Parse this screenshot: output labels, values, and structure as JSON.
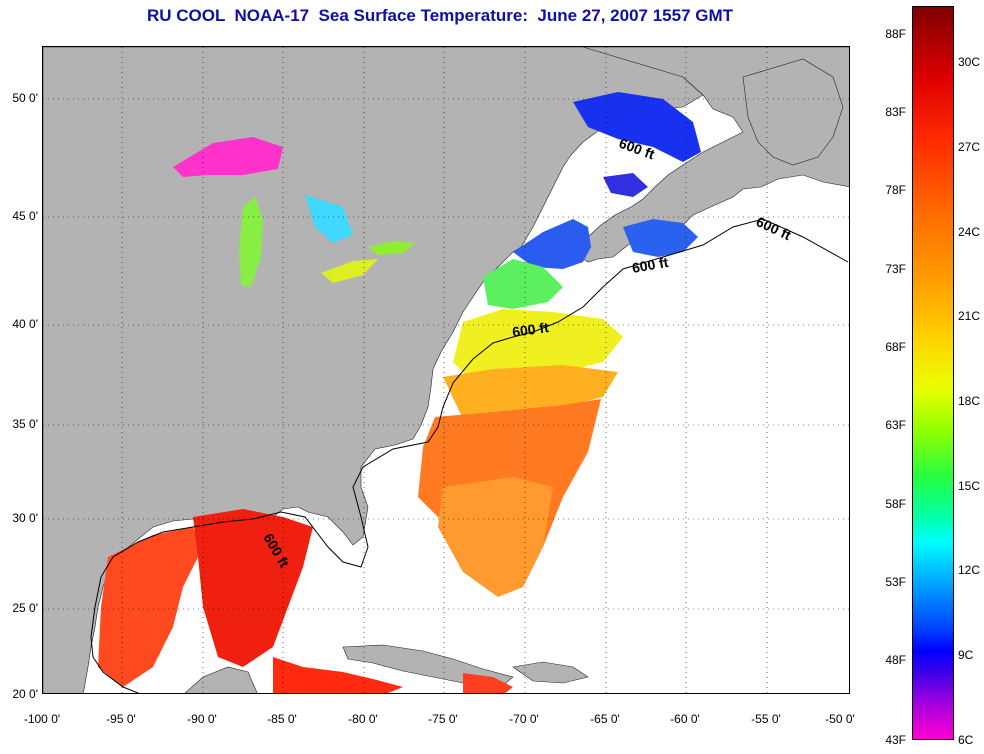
{
  "title": "RU COOL  NOAA-17  Sea Surface Temperature:  June 27, 2007 1557 GMT",
  "map": {
    "lat_labels": [
      "50 0'",
      "45 0'",
      "40 0'",
      "35 0'",
      "30 0'",
      "25 0'",
      "20 0'"
    ],
    "lon_labels": [
      "-100 0'",
      "-95 0'",
      "-90 0'",
      "-85 0'",
      "-80 0'",
      "-75 0'",
      "-70 0'",
      "-65 0'",
      "-60 0'",
      "-55 0'",
      "-50 0'"
    ],
    "contour_label": "600 ft",
    "colors": {
      "land": "#b3b3b3",
      "ocean_nodata": "#ffffff",
      "gridline": "#000000"
    }
  },
  "colorbar": {
    "fahrenheit_labels": [
      "88F",
      "83F",
      "78F",
      "73F",
      "68F",
      "63F",
      "58F",
      "53F",
      "48F",
      "43F"
    ],
    "celsius_labels": [
      "30C",
      "27C",
      "24C",
      "21C",
      "18C",
      "15C",
      "12C",
      "9C",
      "6C"
    ]
  }
}
